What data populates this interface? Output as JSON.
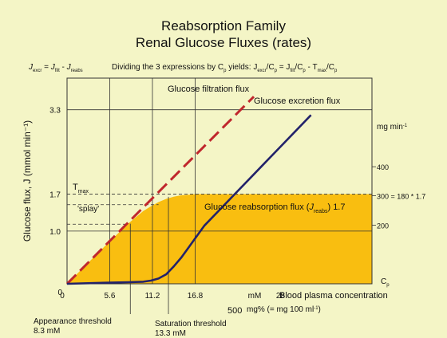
{
  "chart_data": {
    "type": "line",
    "title": "Reabsorption Family",
    "subtitle": "Renal Glucose Fluxes (rates)",
    "equation_left": "J_excr = J_filt - J_reabs",
    "equation_right": "Dividing the 3 expressions by Cp yields: J_excr/Cp = J_filt/Cp - T_max/Cp",
    "ylabel": "Glucose flux, J (mmol min⁻¹)",
    "xlabel": "Blood plasma concentration",
    "xlabel_symbol": "Cₚ",
    "xunit_mm": "mM",
    "xunit_mgpct": "mg% (= mg 100 ml⁻¹)",
    "xtick_500": "500",
    "right_axis_unit": "mg min⁻¹",
    "xlim": [
      0,
      40
    ],
    "ylim": [
      0,
      3.9
    ],
    "x_ticks": [
      {
        "value": 5.6,
        "label": "5.6"
      },
      {
        "value": 11.2,
        "label": "11.2"
      },
      {
        "value": 16.8,
        "label": "16.8"
      },
      {
        "value": 28,
        "label": "28"
      }
    ],
    "x_origin_label": "0",
    "y_ticks": [
      {
        "value": 1.0,
        "label": "1.0"
      },
      {
        "value": 1.7,
        "label": "1.7"
      },
      {
        "value": 3.3,
        "label": "3.3"
      }
    ],
    "y_origin_label": "0",
    "right_ticks": [
      {
        "value": 1.11,
        "label": "200"
      },
      {
        "value": 1.67,
        "label": "300 = 180 * 1.7"
      },
      {
        "value": 2.22,
        "label": "400"
      }
    ],
    "tmax": 1.7,
    "tmax_label": "Tmax",
    "splay_label": "'splay'",
    "series": [
      {
        "name": "Glucose filtration flux",
        "color": "#c0272d",
        "style": "dashed",
        "x": [
          0,
          24.5
        ],
        "y": [
          0,
          3.55
        ]
      },
      {
        "name": "Glucose excretion flux",
        "color": "#22226a",
        "style": "solid",
        "x": [
          0,
          5,
          8,
          10,
          11,
          12,
          13,
          14,
          15,
          16,
          17,
          18,
          20,
          22,
          24,
          26,
          28,
          30,
          32
        ],
        "y": [
          0,
          0.02,
          0.03,
          0.04,
          0.06,
          0.1,
          0.18,
          0.33,
          0.5,
          0.7,
          0.9,
          1.1,
          1.4,
          1.7,
          2.0,
          2.3,
          2.6,
          2.9,
          3.2
        ]
      },
      {
        "name": "Glucose reabsorption flux (J_reabs) 1.7",
        "color": "#f9be10",
        "style": "area",
        "x": [
          0,
          5,
          8,
          10,
          11,
          12,
          13,
          14,
          15,
          16,
          17,
          18,
          20,
          40
        ],
        "y": [
          0,
          0.72,
          1.14,
          1.38,
          1.47,
          1.55,
          1.61,
          1.65,
          1.68,
          1.69,
          1.7,
          1.7,
          1.7,
          1.7
        ]
      }
    ],
    "annotations": {
      "appearance": {
        "label": "Appearance threshold",
        "value_label": "8.3 mM",
        "x": 8.3
      },
      "saturation": {
        "label": "Saturation threshold",
        "value_label": "13.3 mM",
        "x": 13.3
      }
    }
  }
}
